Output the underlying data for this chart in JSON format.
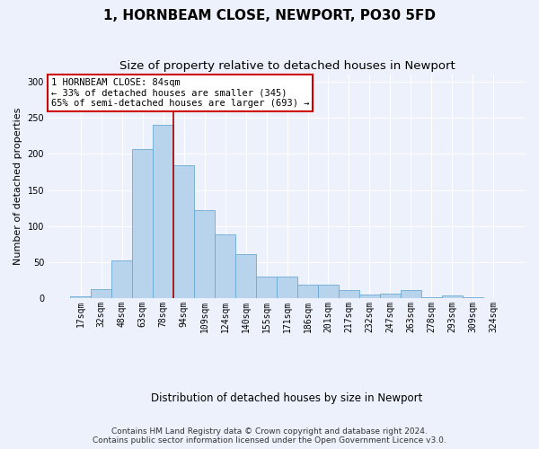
{
  "title": "1, HORNBEAM CLOSE, NEWPORT, PO30 5FD",
  "subtitle": "Size of property relative to detached houses in Newport",
  "xlabel": "Distribution of detached houses by size in Newport",
  "ylabel": "Number of detached properties",
  "categories": [
    "17sqm",
    "32sqm",
    "48sqm",
    "63sqm",
    "78sqm",
    "94sqm",
    "109sqm",
    "124sqm",
    "140sqm",
    "155sqm",
    "171sqm",
    "186sqm",
    "201sqm",
    "217sqm",
    "232sqm",
    "247sqm",
    "263sqm",
    "278sqm",
    "293sqm",
    "309sqm",
    "324sqm"
  ],
  "values": [
    3,
    13,
    52,
    207,
    240,
    184,
    122,
    89,
    61,
    30,
    30,
    19,
    19,
    11,
    5,
    7,
    12,
    2,
    4,
    2,
    1
  ],
  "bar_color": "#b8d4ec",
  "bar_edge_color": "#6aaad4",
  "red_line_x": 5,
  "red_line_color": "#aa0000",
  "annotation_text": "1 HORNBEAM CLOSE: 84sqm\n← 33% of detached houses are smaller (345)\n65% of semi-detached houses are larger (693) →",
  "annotation_box_color": "#ffffff",
  "annotation_box_edge": "#cc0000",
  "footer_text": "Contains HM Land Registry data © Crown copyright and database right 2024.\nContains public sector information licensed under the Open Government Licence v3.0.",
  "ylim": [
    0,
    310
  ],
  "bg_color": "#edf1fb",
  "plot_bg_color": "#edf1fb",
  "grid_color": "#ffffff",
  "title_fontsize": 11,
  "subtitle_fontsize": 9.5,
  "ylabel_fontsize": 8,
  "xlabel_fontsize": 8.5,
  "tick_fontsize": 7,
  "annotation_fontsize": 7.5,
  "footer_fontsize": 6.5
}
